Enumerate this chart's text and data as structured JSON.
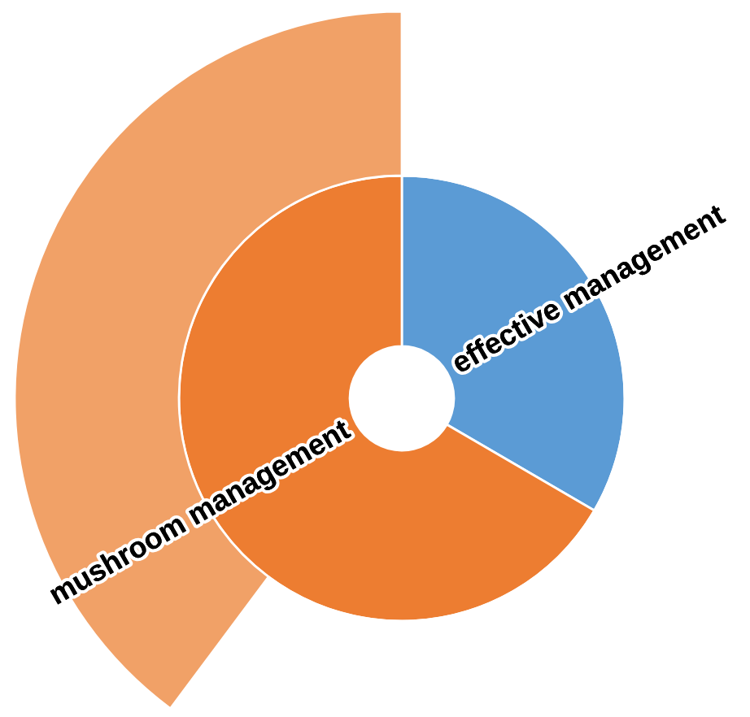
{
  "chart_data": {
    "type": "donut",
    "categories": [
      "effective management",
      "mushroom management"
    ],
    "values": [
      33.4,
      66.6
    ],
    "colors": [
      "#5b9bd5",
      "#ed7d31"
    ],
    "series": [
      {
        "values": [
          60.2,
          39.8
        ],
        "colors": [
          "#ffffff",
          "#f1a167"
        ]
      }
    ]
  }
}
